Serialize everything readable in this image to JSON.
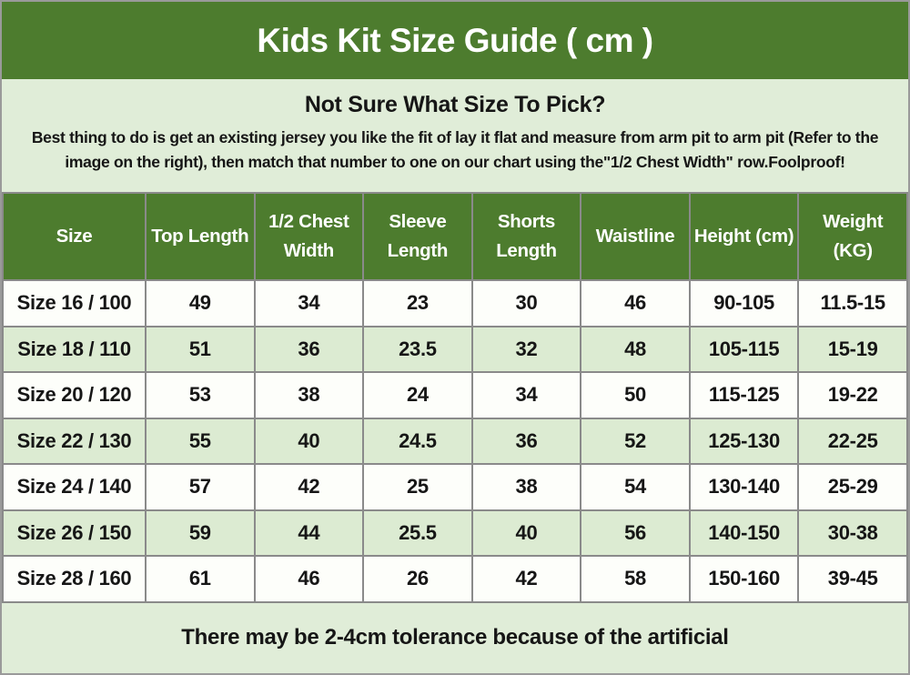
{
  "title_bar": {
    "title": "Kids Kit Size Guide ( cm )"
  },
  "intro": {
    "heading": "Not Sure What Size To Pick?",
    "body": "Best thing to do is get an existing jersey you like the fit of lay it flat and measure from arm pit to arm pit (Refer to the image on the right), then match that number to one on our chart using the\"1/2 Chest Width\" row.Foolproof!"
  },
  "size_table": {
    "headers": [
      "Size",
      "Top Length",
      "1/2 Chest Width",
      "Sleeve Length",
      "Shorts Length",
      "Waistline",
      "Height (cm)",
      "Weight (KG)"
    ],
    "rows": [
      [
        "Size 16 / 100",
        "49",
        "34",
        "23",
        "30",
        "46",
        "90-105",
        "11.5-15"
      ],
      [
        "Size 18 / 110",
        "51",
        "36",
        "23.5",
        "32",
        "48",
        "105-115",
        "15-19"
      ],
      [
        "Size 20 / 120",
        "53",
        "38",
        "24",
        "34",
        "50",
        "115-125",
        "19-22"
      ],
      [
        "Size 22 / 130",
        "55",
        "40",
        "24.5",
        "36",
        "52",
        "125-130",
        "22-25"
      ],
      [
        "Size 24 / 140",
        "57",
        "42",
        "25",
        "38",
        "54",
        "130-140",
        "25-29"
      ],
      [
        "Size 26 / 150",
        "59",
        "44",
        "25.5",
        "40",
        "56",
        "140-150",
        "30-38"
      ],
      [
        "Size 28 / 160",
        "61",
        "46",
        "26",
        "42",
        "58",
        "150-160",
        "39-45"
      ]
    ]
  },
  "footer": {
    "note": "There may be 2-4cm tolerance because of the artificial"
  },
  "colors": {
    "header_green": "#4d7c2e",
    "panel_green": "#e0edd8",
    "row_alt_green": "#dcebd2",
    "row_white": "#fdfefa",
    "border_gray": "#8a8a8a",
    "outer_border_gray": "#9a9a9a",
    "text_black": "#161616",
    "header_text": "#ffffff"
  }
}
